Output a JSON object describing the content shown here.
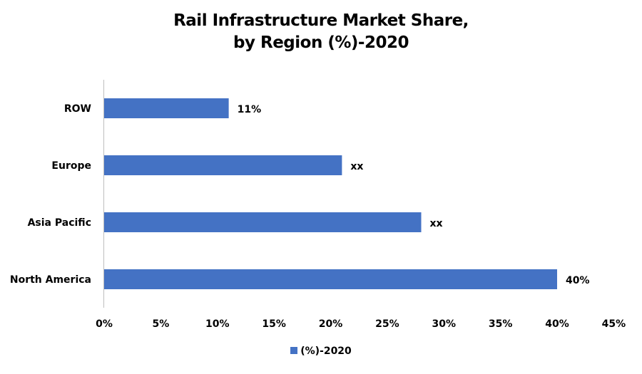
{
  "chart_data": {
    "type": "bar",
    "orientation": "horizontal",
    "title": "Rail Infrastructure Market Share,\nby Region (%)-2020",
    "title_lines": [
      "Rail Infrastructure Market Share,",
      "by Region (%)-2020"
    ],
    "categories": [
      "ROW",
      "Europe",
      "Asia Pacific",
      "North America"
    ],
    "series": [
      {
        "name": "(%)-2020",
        "values": [
          11,
          21,
          28,
          40
        ],
        "data_labels": [
          "11%",
          "xx",
          "xx",
          "40%"
        ],
        "color": "#4472C4"
      }
    ],
    "xlim": [
      0,
      45
    ],
    "xticks": [
      "0%",
      "5%",
      "10%",
      "15%",
      "20%",
      "25%",
      "30%",
      "35%",
      "40%",
      "45%"
    ],
    "xlabel": "",
    "ylabel": "",
    "grid": false,
    "legend_position": "bottom"
  }
}
